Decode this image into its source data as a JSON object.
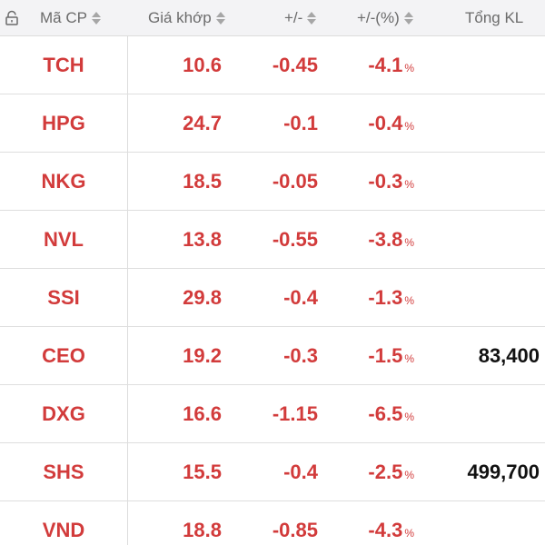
{
  "header": {
    "symbol": "Mã CP",
    "price": "Giá khớp",
    "change": "+/-",
    "percent": "+/-(%)",
    "volume": "Tổng KL",
    "icon": "lock-icon"
  },
  "colors": {
    "down": "#d23b3b",
    "text": "#111111",
    "header_bg": "#f3f3f5",
    "header_text": "#6b6b6b"
  },
  "rows": [
    {
      "symbol": "TCH",
      "price": "10.6",
      "change": "-0.45",
      "percent": "-4.1",
      "pct_sign": "%",
      "volume": ""
    },
    {
      "symbol": "HPG",
      "price": "24.7",
      "change": "-0.1",
      "percent": "-0.4",
      "pct_sign": "%",
      "volume": ""
    },
    {
      "symbol": "NKG",
      "price": "18.5",
      "change": "-0.05",
      "percent": "-0.3",
      "pct_sign": "%",
      "volume": ""
    },
    {
      "symbol": "NVL",
      "price": "13.8",
      "change": "-0.55",
      "percent": "-3.8",
      "pct_sign": "%",
      "volume": ""
    },
    {
      "symbol": "SSI",
      "price": "29.8",
      "change": "-0.4",
      "percent": "-1.3",
      "pct_sign": "%",
      "volume": ""
    },
    {
      "symbol": "CEO",
      "price": "19.2",
      "change": "-0.3",
      "percent": "-1.5",
      "pct_sign": "%",
      "volume": "83,400"
    },
    {
      "symbol": "DXG",
      "price": "16.6",
      "change": "-1.15",
      "percent": "-6.5",
      "pct_sign": "%",
      "volume": ""
    },
    {
      "symbol": "SHS",
      "price": "15.5",
      "change": "-0.4",
      "percent": "-2.5",
      "pct_sign": "%",
      "volume": "499,700"
    },
    {
      "symbol": "VND",
      "price": "18.8",
      "change": "-0.85",
      "percent": "-4.3",
      "pct_sign": "%",
      "volume": ""
    }
  ]
}
